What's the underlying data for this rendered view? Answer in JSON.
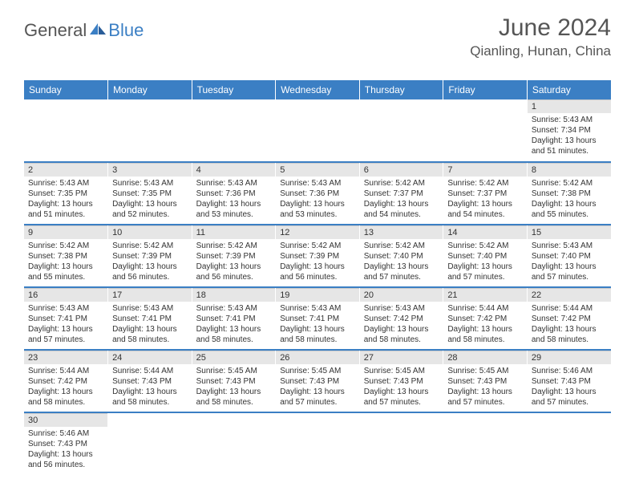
{
  "logo": {
    "part1": "General",
    "part2": "Blue"
  },
  "title": "June 2024",
  "location": "Qianling, Hunan, China",
  "colors": {
    "header_bg": "#3b7fc4",
    "header_text": "#ffffff",
    "daynum_bg": "#e6e6e6",
    "row_border": "#3b7fc4",
    "text": "#333333"
  },
  "weekdays": [
    "Sunday",
    "Monday",
    "Tuesday",
    "Wednesday",
    "Thursday",
    "Friday",
    "Saturday"
  ],
  "weeks": [
    [
      null,
      null,
      null,
      null,
      null,
      null,
      {
        "n": "1",
        "sr": "5:43 AM",
        "ss": "7:34 PM",
        "dl": "13 hours and 51 minutes."
      }
    ],
    [
      {
        "n": "2",
        "sr": "5:43 AM",
        "ss": "7:35 PM",
        "dl": "13 hours and 51 minutes."
      },
      {
        "n": "3",
        "sr": "5:43 AM",
        "ss": "7:35 PM",
        "dl": "13 hours and 52 minutes."
      },
      {
        "n": "4",
        "sr": "5:43 AM",
        "ss": "7:36 PM",
        "dl": "13 hours and 53 minutes."
      },
      {
        "n": "5",
        "sr": "5:43 AM",
        "ss": "7:36 PM",
        "dl": "13 hours and 53 minutes."
      },
      {
        "n": "6",
        "sr": "5:42 AM",
        "ss": "7:37 PM",
        "dl": "13 hours and 54 minutes."
      },
      {
        "n": "7",
        "sr": "5:42 AM",
        "ss": "7:37 PM",
        "dl": "13 hours and 54 minutes."
      },
      {
        "n": "8",
        "sr": "5:42 AM",
        "ss": "7:38 PM",
        "dl": "13 hours and 55 minutes."
      }
    ],
    [
      {
        "n": "9",
        "sr": "5:42 AM",
        "ss": "7:38 PM",
        "dl": "13 hours and 55 minutes."
      },
      {
        "n": "10",
        "sr": "5:42 AM",
        "ss": "7:39 PM",
        "dl": "13 hours and 56 minutes."
      },
      {
        "n": "11",
        "sr": "5:42 AM",
        "ss": "7:39 PM",
        "dl": "13 hours and 56 minutes."
      },
      {
        "n": "12",
        "sr": "5:42 AM",
        "ss": "7:39 PM",
        "dl": "13 hours and 56 minutes."
      },
      {
        "n": "13",
        "sr": "5:42 AM",
        "ss": "7:40 PM",
        "dl": "13 hours and 57 minutes."
      },
      {
        "n": "14",
        "sr": "5:42 AM",
        "ss": "7:40 PM",
        "dl": "13 hours and 57 minutes."
      },
      {
        "n": "15",
        "sr": "5:43 AM",
        "ss": "7:40 PM",
        "dl": "13 hours and 57 minutes."
      }
    ],
    [
      {
        "n": "16",
        "sr": "5:43 AM",
        "ss": "7:41 PM",
        "dl": "13 hours and 57 minutes."
      },
      {
        "n": "17",
        "sr": "5:43 AM",
        "ss": "7:41 PM",
        "dl": "13 hours and 58 minutes."
      },
      {
        "n": "18",
        "sr": "5:43 AM",
        "ss": "7:41 PM",
        "dl": "13 hours and 58 minutes."
      },
      {
        "n": "19",
        "sr": "5:43 AM",
        "ss": "7:41 PM",
        "dl": "13 hours and 58 minutes."
      },
      {
        "n": "20",
        "sr": "5:43 AM",
        "ss": "7:42 PM",
        "dl": "13 hours and 58 minutes."
      },
      {
        "n": "21",
        "sr": "5:44 AM",
        "ss": "7:42 PM",
        "dl": "13 hours and 58 minutes."
      },
      {
        "n": "22",
        "sr": "5:44 AM",
        "ss": "7:42 PM",
        "dl": "13 hours and 58 minutes."
      }
    ],
    [
      {
        "n": "23",
        "sr": "5:44 AM",
        "ss": "7:42 PM",
        "dl": "13 hours and 58 minutes."
      },
      {
        "n": "24",
        "sr": "5:44 AM",
        "ss": "7:43 PM",
        "dl": "13 hours and 58 minutes."
      },
      {
        "n": "25",
        "sr": "5:45 AM",
        "ss": "7:43 PM",
        "dl": "13 hours and 58 minutes."
      },
      {
        "n": "26",
        "sr": "5:45 AM",
        "ss": "7:43 PM",
        "dl": "13 hours and 57 minutes."
      },
      {
        "n": "27",
        "sr": "5:45 AM",
        "ss": "7:43 PM",
        "dl": "13 hours and 57 minutes."
      },
      {
        "n": "28",
        "sr": "5:45 AM",
        "ss": "7:43 PM",
        "dl": "13 hours and 57 minutes."
      },
      {
        "n": "29",
        "sr": "5:46 AM",
        "ss": "7:43 PM",
        "dl": "13 hours and 57 minutes."
      }
    ],
    [
      {
        "n": "30",
        "sr": "5:46 AM",
        "ss": "7:43 PM",
        "dl": "13 hours and 56 minutes."
      },
      null,
      null,
      null,
      null,
      null,
      null
    ]
  ],
  "labels": {
    "sunrise": "Sunrise: ",
    "sunset": "Sunset: ",
    "daylight": "Daylight: "
  }
}
